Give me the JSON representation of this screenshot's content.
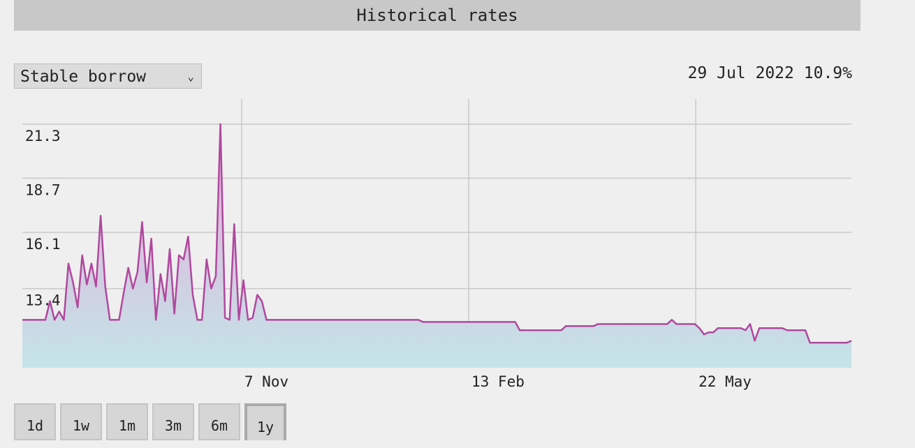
{
  "header": {
    "title": "Historical rates"
  },
  "selector": {
    "label": "Stable borrow"
  },
  "readout": {
    "date": "29 Jul 2022",
    "value": "10.9%"
  },
  "chart_data": {
    "type": "area",
    "series": [
      {
        "color": "#b0489e",
        "values": [
          11.9,
          11.9,
          11.9,
          11.9,
          11.9,
          11.9,
          12.8,
          11.9,
          12.3,
          11.9,
          14.6,
          13.7,
          12.5,
          15.0,
          13.6,
          14.6,
          13.5,
          16.9,
          13.5,
          11.9,
          11.9,
          11.9,
          13.2,
          14.4,
          13.4,
          14.2,
          16.6,
          13.7,
          15.8,
          11.9,
          14.1,
          12.8,
          15.3,
          12.2,
          15.0,
          14.8,
          15.9,
          13.1,
          11.9,
          11.9,
          14.8,
          13.4,
          14.0,
          21.3,
          12.0,
          11.9,
          16.5,
          11.9,
          13.8,
          11.9,
          12.0,
          13.1,
          12.8,
          11.9,
          11.9,
          11.9,
          11.9,
          11.9,
          11.9,
          11.9,
          11.9,
          11.9,
          11.9,
          11.9,
          11.9,
          11.9,
          11.9,
          11.9,
          11.9,
          11.9,
          11.9,
          11.9,
          11.9,
          11.9,
          11.9,
          11.9,
          11.9,
          11.9,
          11.9,
          11.9,
          11.9,
          11.9,
          11.9,
          11.9,
          11.9,
          11.9,
          11.9,
          11.8,
          11.8,
          11.8,
          11.8,
          11.8,
          11.8,
          11.8,
          11.8,
          11.8,
          11.8,
          11.8,
          11.8,
          11.8,
          11.8,
          11.8,
          11.8,
          11.8,
          11.8,
          11.8,
          11.8,
          11.8,
          11.4,
          11.4,
          11.4,
          11.4,
          11.4,
          11.4,
          11.4,
          11.4,
          11.4,
          11.4,
          11.6,
          11.6,
          11.6,
          11.6,
          11.6,
          11.6,
          11.6,
          11.7,
          11.7,
          11.7,
          11.7,
          11.7,
          11.7,
          11.7,
          11.7,
          11.7,
          11.7,
          11.7,
          11.7,
          11.7,
          11.7,
          11.7,
          11.7,
          11.9,
          11.7,
          11.7,
          11.7,
          11.7,
          11.7,
          11.5,
          11.2,
          11.3,
          11.3,
          11.5,
          11.5,
          11.5,
          11.5,
          11.5,
          11.5,
          11.4,
          11.7,
          10.9,
          11.5,
          11.5,
          11.5,
          11.5,
          11.5,
          11.5,
          11.4,
          11.4,
          11.4,
          11.4,
          11.4,
          10.8,
          10.8,
          10.8,
          10.8,
          10.8,
          10.8,
          10.8,
          10.8,
          10.8,
          10.9
        ]
      }
    ],
    "xlim": [
      0,
      180
    ],
    "xticks": [
      {
        "value": 47.6,
        "label": "7 Nov"
      },
      {
        "value": 96.9,
        "label": "13 Feb"
      },
      {
        "value": 146.2,
        "label": "22 May"
      }
    ],
    "ylim": [
      9.6,
      22.5
    ],
    "yticks": [
      13.4,
      16.1,
      18.7,
      21.3
    ],
    "grid": true
  },
  "ranges": {
    "buttons": [
      "1d",
      "1w",
      "1m",
      "3m",
      "6m",
      "1y"
    ],
    "active": 5
  }
}
